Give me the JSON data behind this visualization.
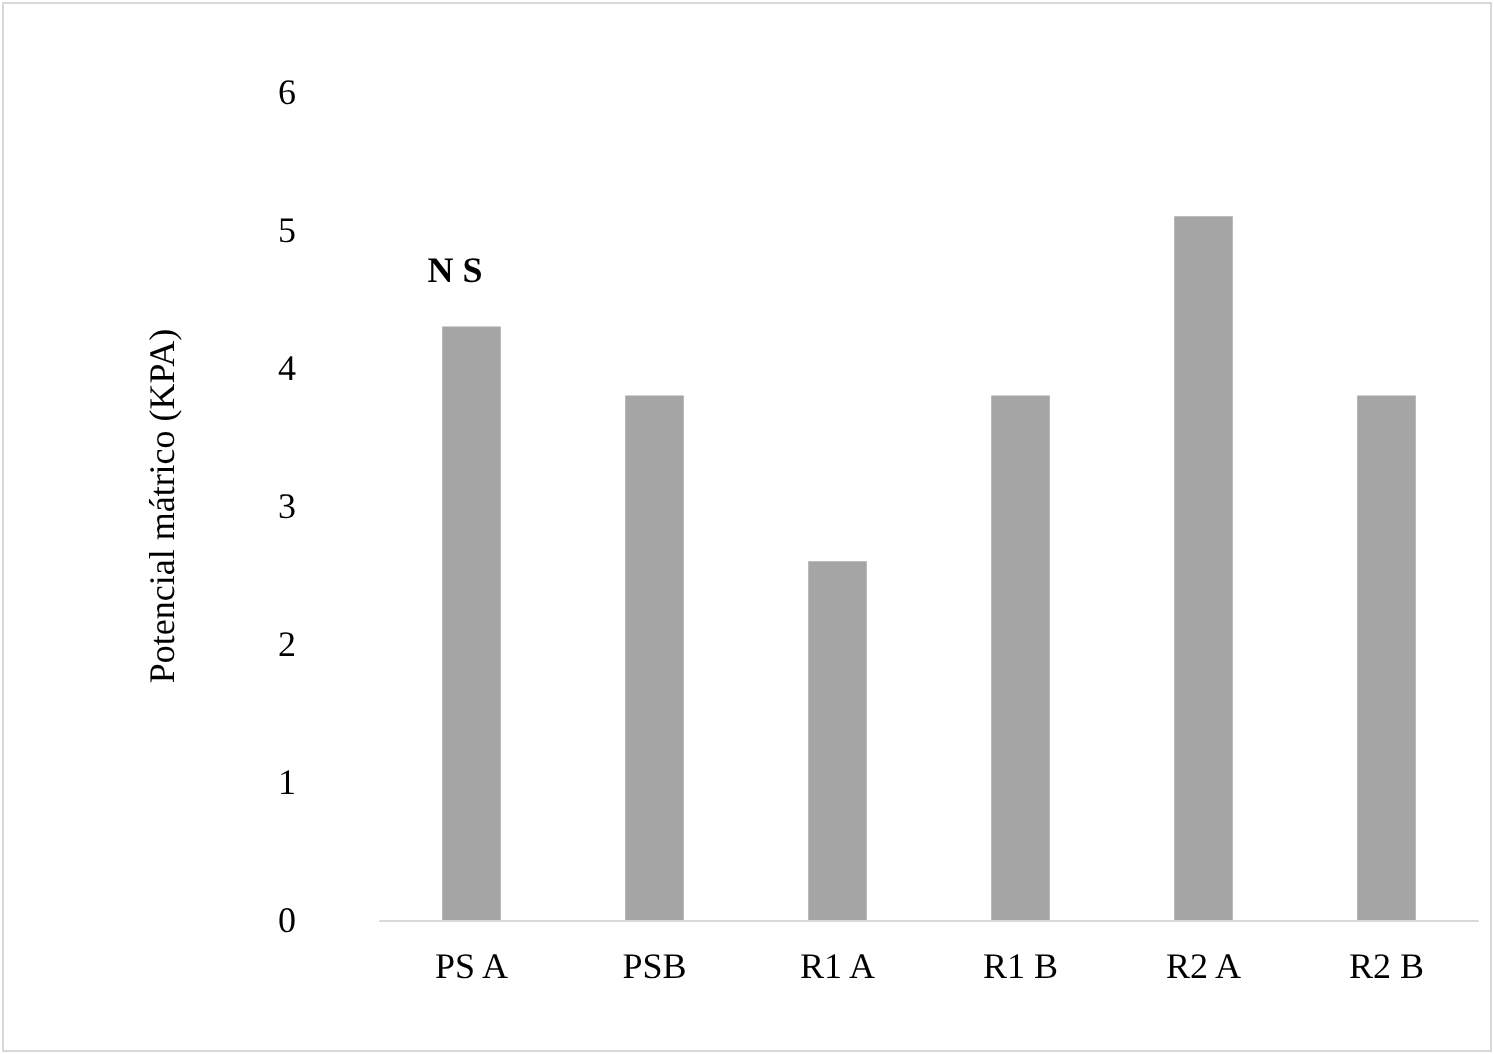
{
  "chart_data": {
    "type": "bar",
    "ylabel": "Potencial mátrico (KPA)",
    "categories": [
      "PS A",
      "PSB",
      "R1 A",
      "R1 B",
      "R2 A",
      "R2 B"
    ],
    "values": [
      4.3,
      3.8,
      2.6,
      3.8,
      5.1,
      3.8
    ],
    "color": "#a5a5a5",
    "ylim": [
      0,
      6
    ],
    "yticks": [
      0,
      1,
      2,
      3,
      4,
      5,
      6
    ],
    "grid": false,
    "annotations": [
      "N S"
    ]
  }
}
